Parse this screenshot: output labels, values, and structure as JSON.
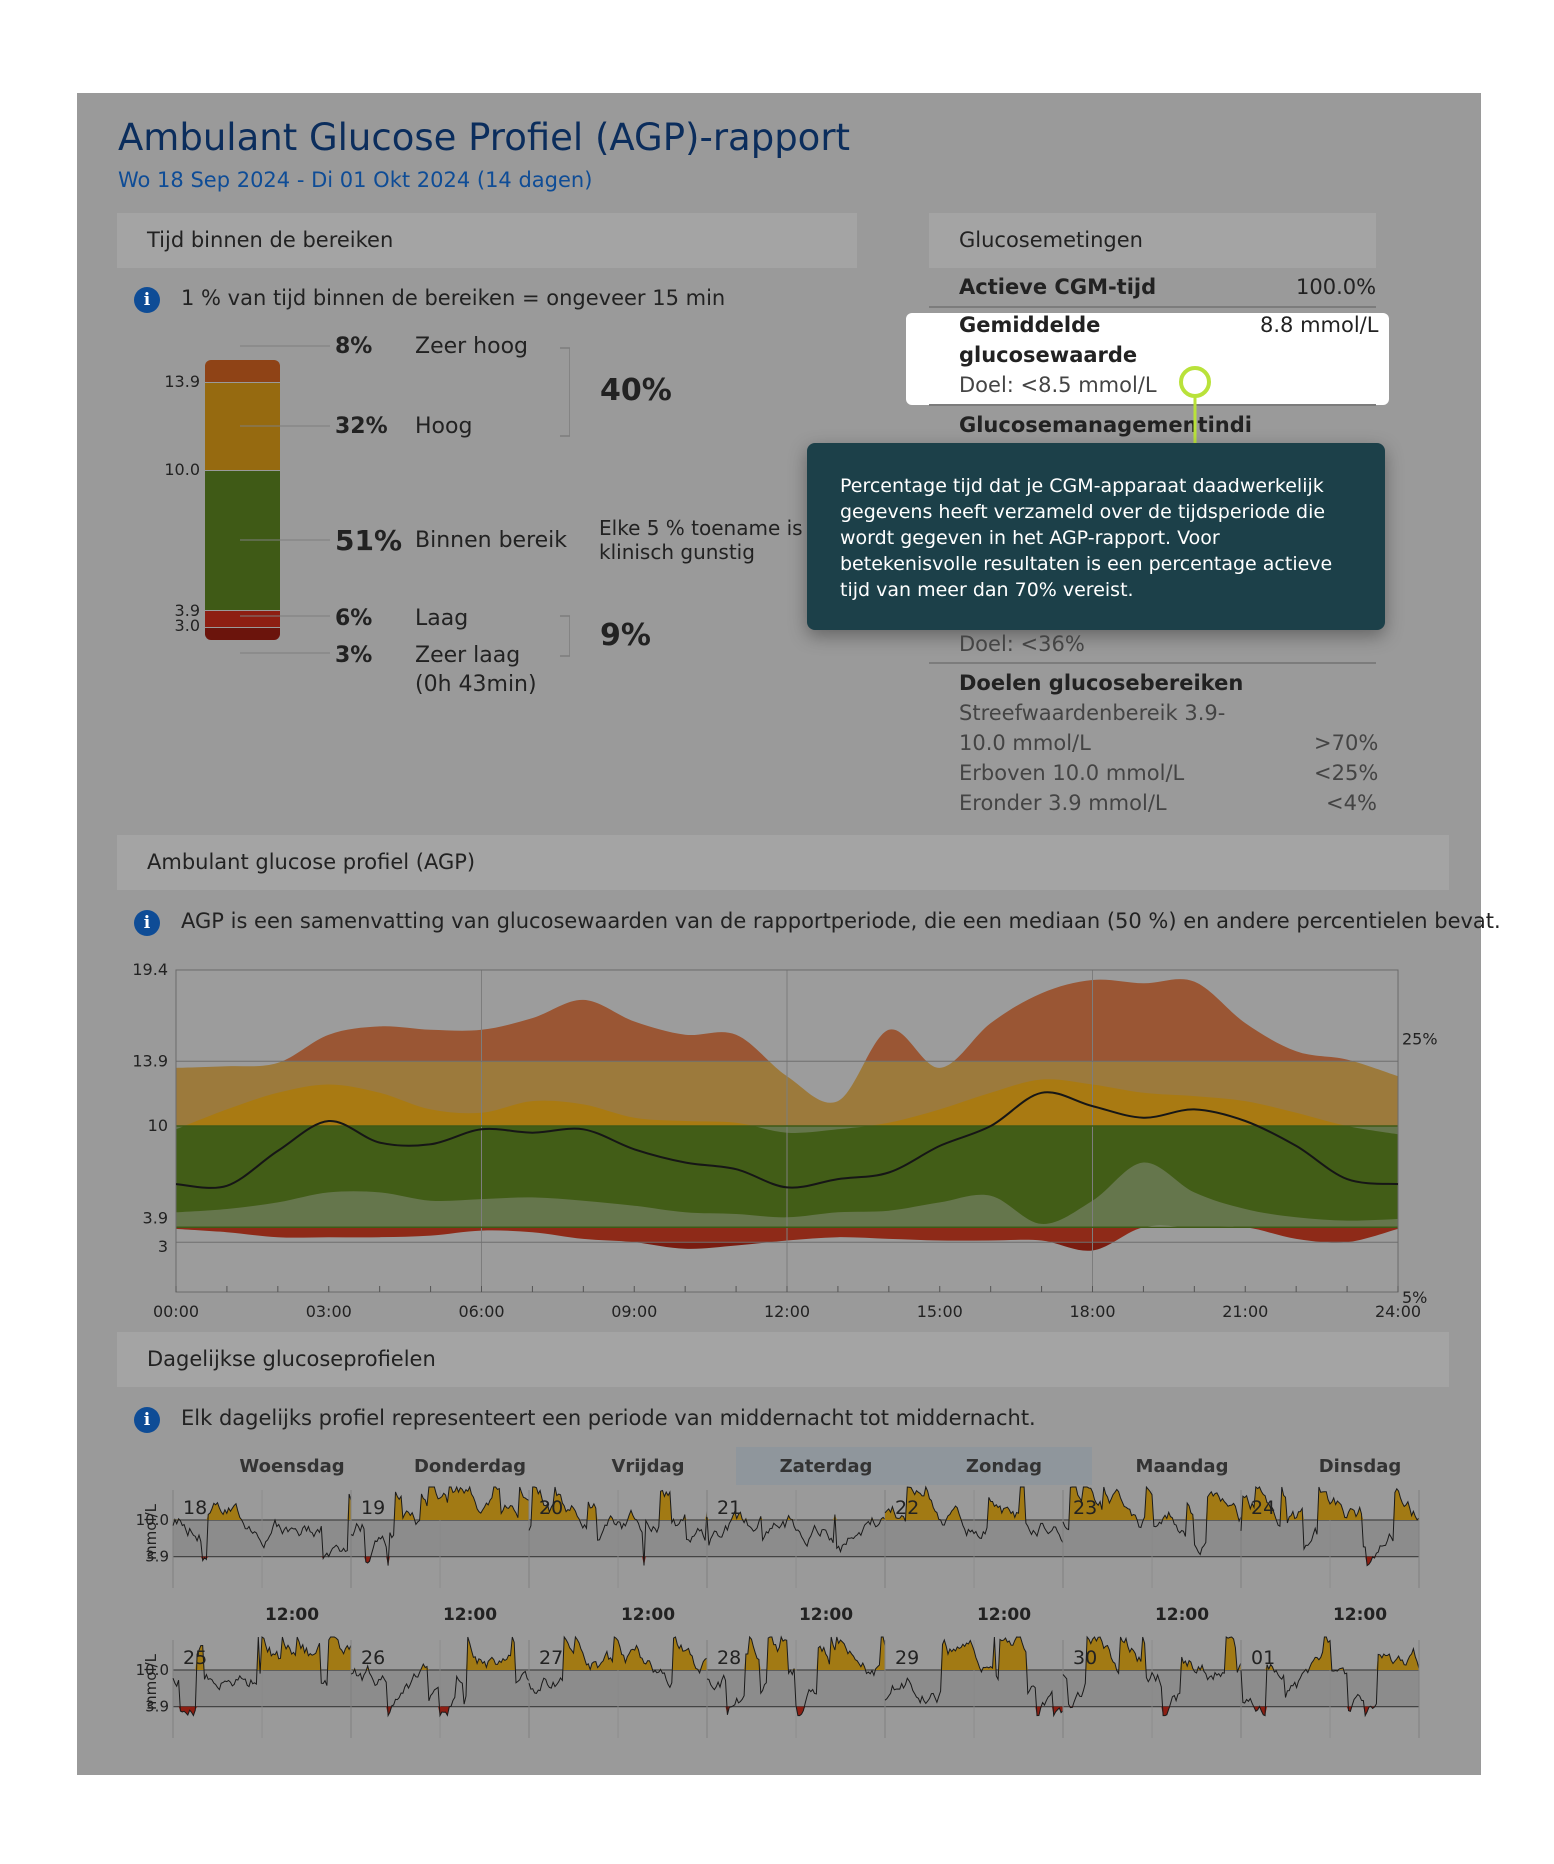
{
  "report": {
    "title": "Ambulant Glucose Profiel (AGP)-rapport",
    "subtitle": "Wo 18 Sep 2024 - Di 01 Okt 2024 (14 dagen)"
  },
  "tir": {
    "header": "Tijd binnen de bereiken",
    "info": "1 % van tijd binnen de bereiken = ongeveer 15 min",
    "ticks": [
      "13.9",
      "10.0",
      "3.9",
      "3.0"
    ],
    "rows": [
      {
        "pct": "8%",
        "label": "Zeer hoog"
      },
      {
        "pct": "32%",
        "label": "Hoog"
      },
      {
        "pct": "51%",
        "label": "Binnen bereik"
      },
      {
        "pct": "6%",
        "label": "Laag"
      },
      {
        "pct": "3%",
        "label": "Zeer laag"
      }
    ],
    "very_low_duration": "(0h 43min)",
    "high_total": "40%",
    "low_total": "9%",
    "range_note_line1": "Elke 5 % toename is",
    "range_note_line2": "klinisch gunstig",
    "colors": {
      "very_high": "#8f4316",
      "high": "#966a10",
      "in_range": "#3f5a16",
      "low": "#8e1e12",
      "very_low": "#6b140c"
    }
  },
  "glucose": {
    "header": "Glucosemetingen",
    "active_cgm_label": "Actieve CGM-tijd",
    "active_cgm_value": "100.0%",
    "mean_label_line1": "Gemiddelde",
    "mean_label_line2": "glucosewaarde",
    "mean_value": "8.8 mmol/L",
    "mean_target": "Doel: <8.5 mmol/L",
    "gmi_label": "Glucosemanagementindi",
    "cv_target": "Doel: <36%",
    "targets_header": "Doelen glucosebereiken",
    "target_range_line1": "Streefwaardenbereik 3.9-",
    "target_range_line2": "10.0 mmol/L",
    "target_range_value": ">70%",
    "above_label": "Erboven 10.0 mmol/L",
    "above_value": "<25%",
    "below_label": "Eronder 3.9 mmol/L",
    "below_value": "<4%"
  },
  "tooltip": {
    "text": "Percentage tijd dat je CGM-apparaat daadwerkelijk gegevens heeft verzameld over de tijdsperiode die wordt gegeven in het AGP-rapport. Voor betekenisvolle resultaten is een percentage actieve tijd van meer dan 70% vereist."
  },
  "agp": {
    "header": "Ambulant glucose profiel (AGP)",
    "info": "AGP is een samenvatting van glucosewaarden van de rapportperiode, die een mediaan (50 %) en andere percentielen bevat."
  },
  "chart_data": {
    "type": "area",
    "title": "Ambulant glucose profiel (AGP)",
    "xlabel": "",
    "ylabel": "mmol/L",
    "xlim": [
      0,
      24
    ],
    "ylim": [
      0,
      19.4
    ],
    "x_tick_labels": [
      "00:00",
      "03:00",
      "06:00",
      "09:00",
      "12:00",
      "15:00",
      "18:00",
      "21:00",
      "24:00"
    ],
    "y_tick_labels": [
      "19.4",
      "13.9",
      "10",
      "3.9",
      "3"
    ],
    "right_labels": [
      "25%",
      "5%"
    ],
    "target_low": 3.9,
    "target_high": 10.0,
    "x": [
      0,
      1,
      2,
      3,
      4,
      5,
      6,
      7,
      8,
      9,
      10,
      11,
      12,
      13,
      14,
      15,
      16,
      17,
      18,
      19,
      20,
      21,
      22,
      23,
      24
    ],
    "series": [
      {
        "name": "p95",
        "values": [
          13.5,
          13.6,
          13.8,
          15.5,
          16.0,
          15.8,
          15.8,
          16.5,
          17.6,
          16.3,
          15.5,
          15.5,
          13.0,
          11.5,
          15.8,
          13.5,
          16.2,
          18.0,
          18.8,
          18.6,
          18.7,
          16.2,
          14.5,
          14.0,
          13.0
        ]
      },
      {
        "name": "p75",
        "values": [
          9.8,
          11.0,
          12.0,
          12.5,
          12.0,
          11.0,
          10.8,
          11.5,
          11.3,
          10.5,
          10.3,
          10.2,
          9.6,
          9.8,
          10.2,
          11.0,
          12.0,
          12.8,
          12.5,
          12.0,
          11.8,
          11.5,
          10.8,
          10.0,
          9.5
        ]
      },
      {
        "name": "p50",
        "values": [
          6.5,
          6.4,
          8.5,
          10.3,
          9.0,
          8.9,
          9.8,
          9.6,
          9.8,
          8.6,
          7.8,
          7.4,
          6.3,
          6.8,
          7.2,
          8.8,
          10.0,
          12.0,
          11.2,
          10.5,
          11.0,
          10.3,
          8.8,
          6.8,
          6.5
        ]
      },
      {
        "name": "p25",
        "values": [
          4.8,
          5.0,
          5.4,
          6.0,
          6.0,
          5.5,
          5.6,
          5.7,
          5.5,
          5.2,
          4.8,
          4.7,
          4.5,
          4.8,
          4.9,
          5.4,
          5.8,
          4.1,
          5.5,
          7.8,
          6.0,
          5.0,
          4.5,
          4.3,
          4.4
        ]
      },
      {
        "name": "p5",
        "values": [
          3.8,
          3.6,
          3.3,
          3.3,
          3.3,
          3.4,
          3.7,
          3.6,
          3.2,
          3.0,
          2.6,
          2.8,
          3.1,
          3.3,
          3.2,
          3.1,
          3.1,
          3.1,
          2.5,
          3.9,
          3.9,
          3.9,
          3.2,
          3.0,
          3.8
        ]
      }
    ]
  },
  "daily": {
    "header": "Dagelijkse glucoseprofielen",
    "info": "Elk dagelijks profiel representeert een periode van middernacht tot middernacht.",
    "weekdays": [
      "Woensdag",
      "Donderdag",
      "Vrijdag",
      "Zaterdag",
      "Zondag",
      "Maandag",
      "Dinsdag"
    ],
    "week1_dates": [
      "18",
      "19",
      "20",
      "21",
      "22",
      "23",
      "24"
    ],
    "week2_dates": [
      "25",
      "26",
      "27",
      "28",
      "29",
      "30",
      "01"
    ],
    "noon_label": "12:00",
    "axis_label": "mmol/L",
    "y_ticks": [
      "10.0",
      "3.9"
    ]
  }
}
